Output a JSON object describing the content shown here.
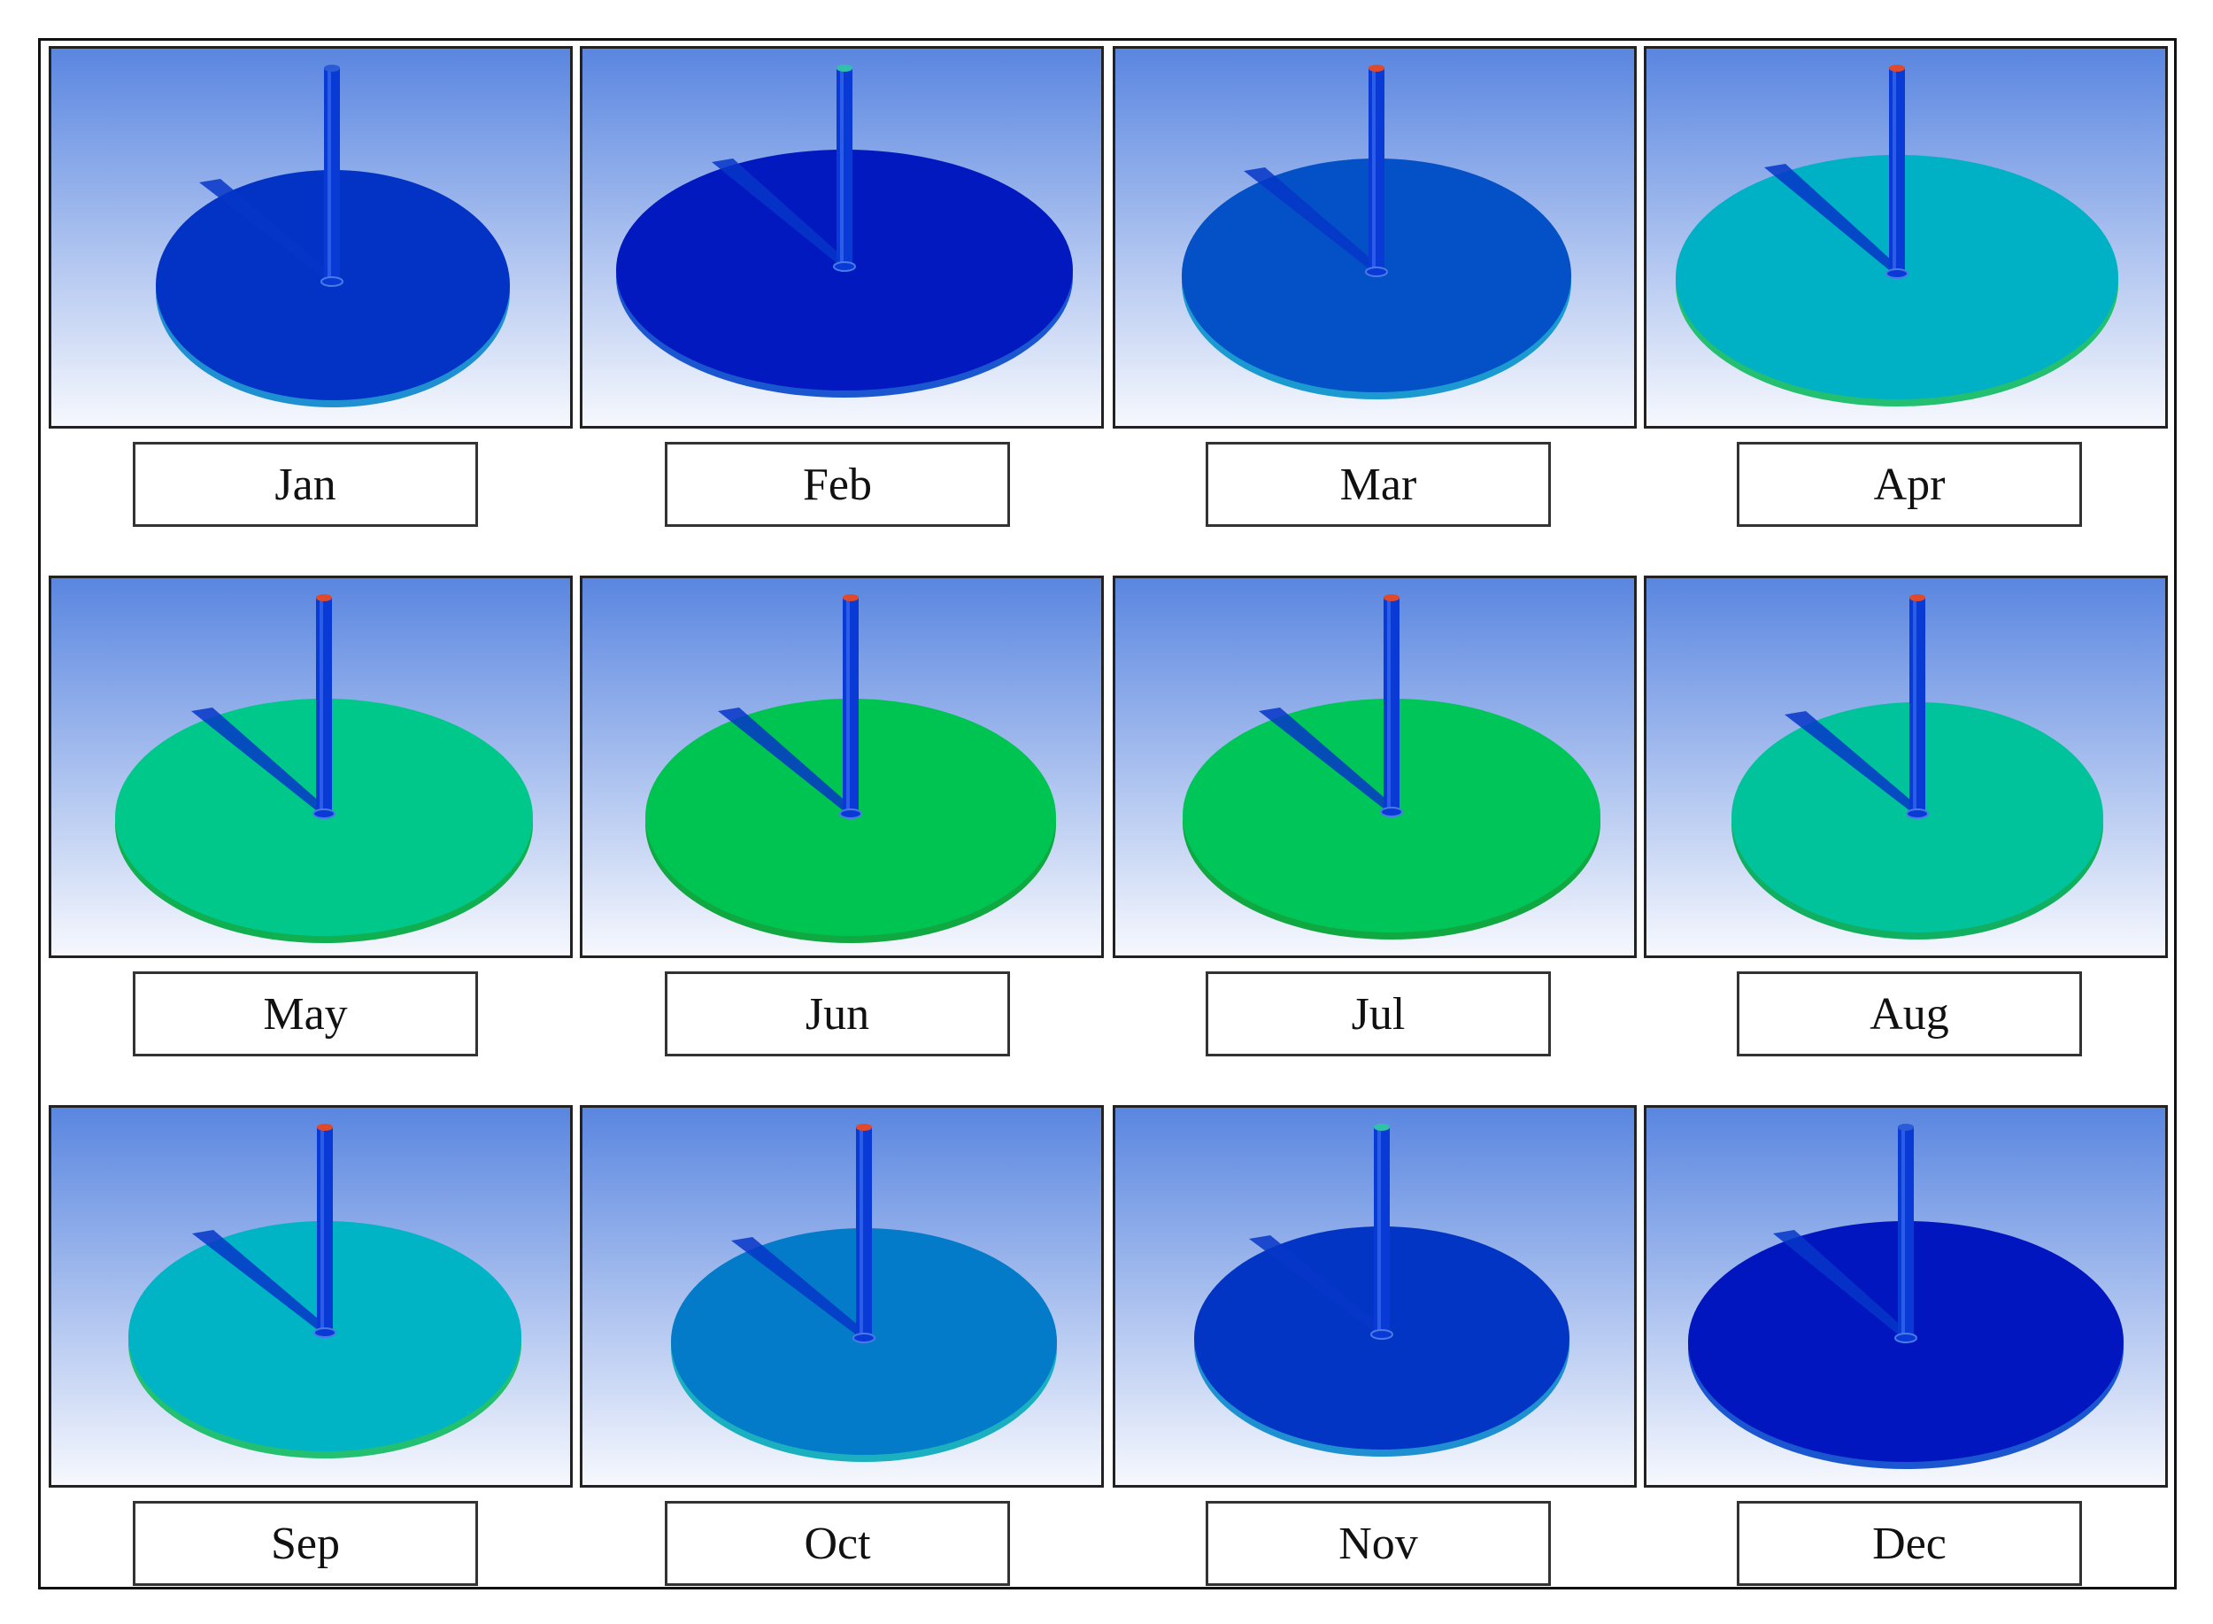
{
  "panels": [
    {
      "label": "Jan",
      "color": "#0333c4",
      "rim": "#1e8fd0",
      "tip": "#2a5bd8"
    },
    {
      "label": "Feb",
      "color": "#0219c0",
      "rim": "#1a56d0",
      "tip": "#2ec3a8"
    },
    {
      "label": "Mar",
      "color": "#0450c6",
      "rim": "#1a9ad0",
      "tip": "#e04a2a"
    },
    {
      "label": "Apr",
      "color": "#00b0c4",
      "rim": "#22c070",
      "tip": "#e04a2a"
    },
    {
      "label": "May",
      "color": "#00c88a",
      "rim": "#10b050",
      "tip": "#e04a2a"
    },
    {
      "label": "Jun",
      "color": "#00c452",
      "rim": "#10a840",
      "tip": "#e04a2a"
    },
    {
      "label": "Jul",
      "color": "#00c65a",
      "rim": "#10a840",
      "tip": "#e04a2a"
    },
    {
      "label": "Aug",
      "color": "#00c39c",
      "rim": "#10b060",
      "tip": "#e04a2a"
    },
    {
      "label": "Sep",
      "color": "#00b4c6",
      "rim": "#22c070",
      "tip": "#e04a2a"
    },
    {
      "label": "Oct",
      "color": "#037bc8",
      "rim": "#1ab0c0",
      "tip": "#e04a2a"
    },
    {
      "label": "Nov",
      "color": "#0335c4",
      "rim": "#1e8fd0",
      "tip": "#2ec3a8"
    },
    {
      "label": "Dec",
      "color": "#0216c0",
      "rim": "#1a56d0",
      "tip": "#2a5bd8"
    }
  ],
  "colors": {
    "sky_top": "#5a86e0",
    "sky_bottom": "#f6f8fd",
    "pole": "#0a3ad6",
    "shadow": "#0636c8"
  }
}
